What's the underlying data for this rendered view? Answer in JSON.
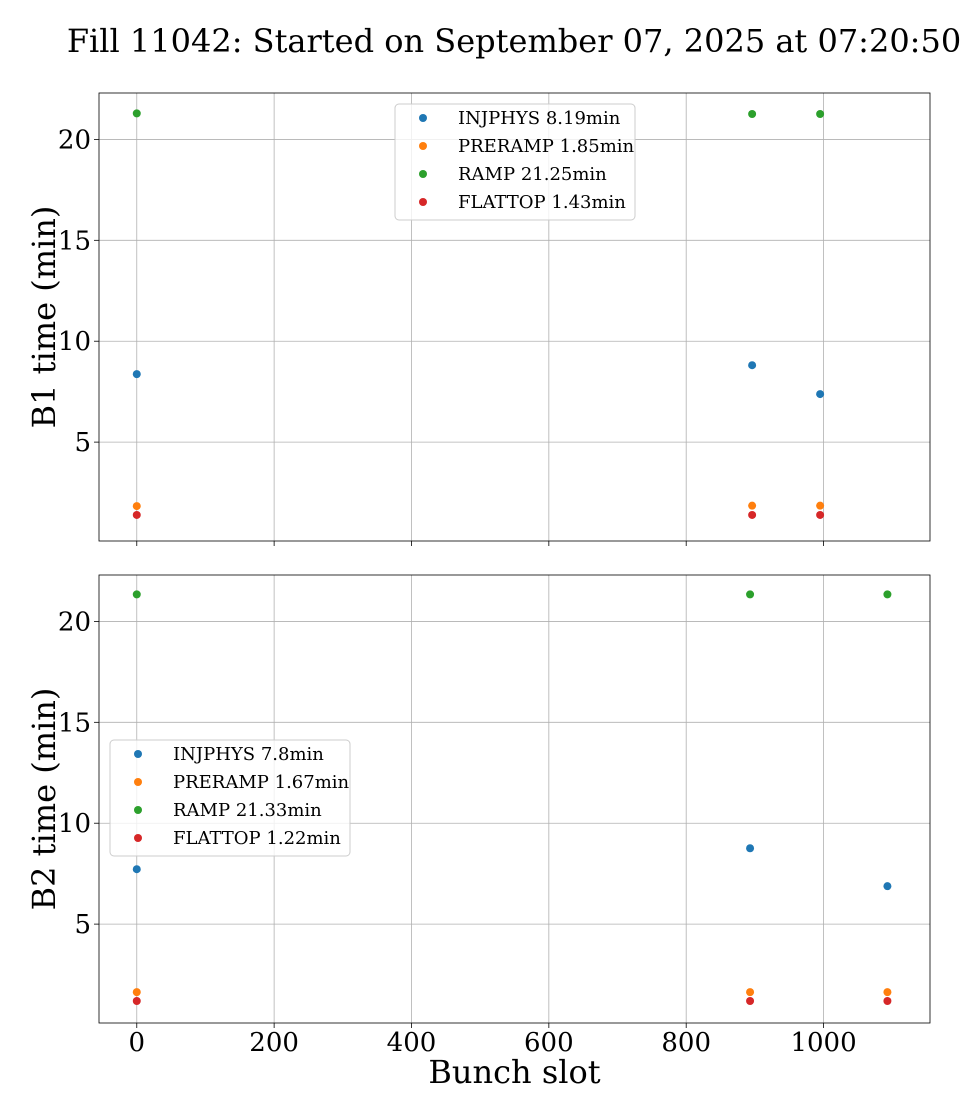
{
  "title": "Fill 11042: Started on September 07, 2025 at 07:20:50",
  "colors": {
    "INJPHYS": "#1f77b4",
    "PRERAMP": "#ff7f0e",
    "RAMP": "#2ca02c",
    "FLATTOP": "#d62728"
  },
  "chart_data": [
    {
      "type": "scatter",
      "panel": "top",
      "ylabel": "B1 time (min)",
      "xlabel": "",
      "xlim": [
        -55,
        1155
      ],
      "ylim": [
        0.1,
        22.3
      ],
      "xticks": [
        0,
        200,
        400,
        600,
        800,
        1000
      ],
      "yticks": [
        5,
        10,
        15,
        20
      ],
      "show_xtick_labels": false,
      "grid": true,
      "legend_position": "top-center",
      "series": [
        {
          "name": "INJPHYS",
          "label": "INJPHYS 8.19min",
          "x": [
            0,
            896,
            995
          ],
          "y": [
            8.37,
            8.81,
            7.38
          ]
        },
        {
          "name": "PRERAMP",
          "label": "PRERAMP 1.85min",
          "x": [
            0,
            896,
            995
          ],
          "y": [
            1.83,
            1.85,
            1.85
          ]
        },
        {
          "name": "RAMP",
          "label": "RAMP 21.25min",
          "x": [
            0,
            896,
            995
          ],
          "y": [
            21.29,
            21.26,
            21.26
          ]
        },
        {
          "name": "FLATTOP",
          "label": "FLATTOP 1.43min",
          "x": [
            0,
            896,
            995
          ],
          "y": [
            1.39,
            1.39,
            1.39
          ]
        }
      ]
    },
    {
      "type": "scatter",
      "panel": "bottom",
      "ylabel": "B2 time (min)",
      "xlabel": "Bunch slot",
      "xlim": [
        -55,
        1155
      ],
      "ylim": [
        0.1,
        22.3
      ],
      "xticks": [
        0,
        200,
        400,
        600,
        800,
        1000
      ],
      "yticks": [
        5,
        10,
        15,
        20
      ],
      "show_xtick_labels": true,
      "grid": true,
      "legend_position": "center-left",
      "series": [
        {
          "name": "INJPHYS",
          "label": "INJPHYS 7.8min",
          "x": [
            0,
            893,
            1093
          ],
          "y": [
            7.72,
            8.76,
            6.88
          ]
        },
        {
          "name": "PRERAMP",
          "label": "PRERAMP 1.67min",
          "x": [
            0,
            893,
            1093
          ],
          "y": [
            1.63,
            1.63,
            1.63
          ]
        },
        {
          "name": "RAMP",
          "label": "RAMP 21.33min",
          "x": [
            0,
            893,
            1093
          ],
          "y": [
            21.34,
            21.34,
            21.34
          ]
        },
        {
          "name": "FLATTOP",
          "label": "FLATTOP 1.22min",
          "x": [
            0,
            893,
            1093
          ],
          "y": [
            1.19,
            1.19,
            1.19
          ]
        }
      ]
    }
  ]
}
